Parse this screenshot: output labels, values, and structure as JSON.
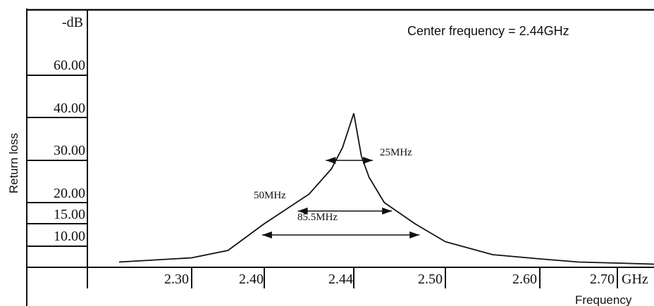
{
  "chart_data": {
    "type": "line",
    "title": "Center frequency = 2.44GHz",
    "xlabel": "Frequency",
    "ylabel": "Return loss",
    "x_unit": "GHz",
    "y_unit": "-dB",
    "xlim": [
      2.2,
      2.8
    ],
    "x_ticks": [
      "2.30",
      "2.40",
      "2.44",
      "2.50",
      "2.60",
      "2.70"
    ],
    "y_ticks": [
      "10.00",
      "15.00",
      "20.00",
      "30.00",
      "40.00",
      "60.00"
    ],
    "series": [
      {
        "x": [
          2.2,
          2.3,
          2.35,
          2.4,
          2.42,
          2.43,
          2.435,
          2.44,
          2.445,
          2.45,
          2.46,
          2.48,
          2.5,
          2.55,
          2.6,
          2.65,
          2.7,
          2.75,
          2.8
        ],
        "y": [
          2.5,
          4.5,
          8,
          15,
          22,
          28,
          33,
          42,
          31,
          26,
          20,
          15,
          11,
          6,
          4,
          2.5,
          2,
          1.5,
          1.2
        ]
      }
    ],
    "annotations": [
      {
        "text": "25MHz",
        "y": 30,
        "x_start": 2.4275,
        "x_end": 2.4525
      },
      {
        "text": "50MHz",
        "y": 18,
        "x_start": 2.415,
        "x_end": 2.465
      },
      {
        "text": "85.5MHz",
        "y": 12.5,
        "x_start": 2.397,
        "x_end": 2.483
      }
    ]
  }
}
